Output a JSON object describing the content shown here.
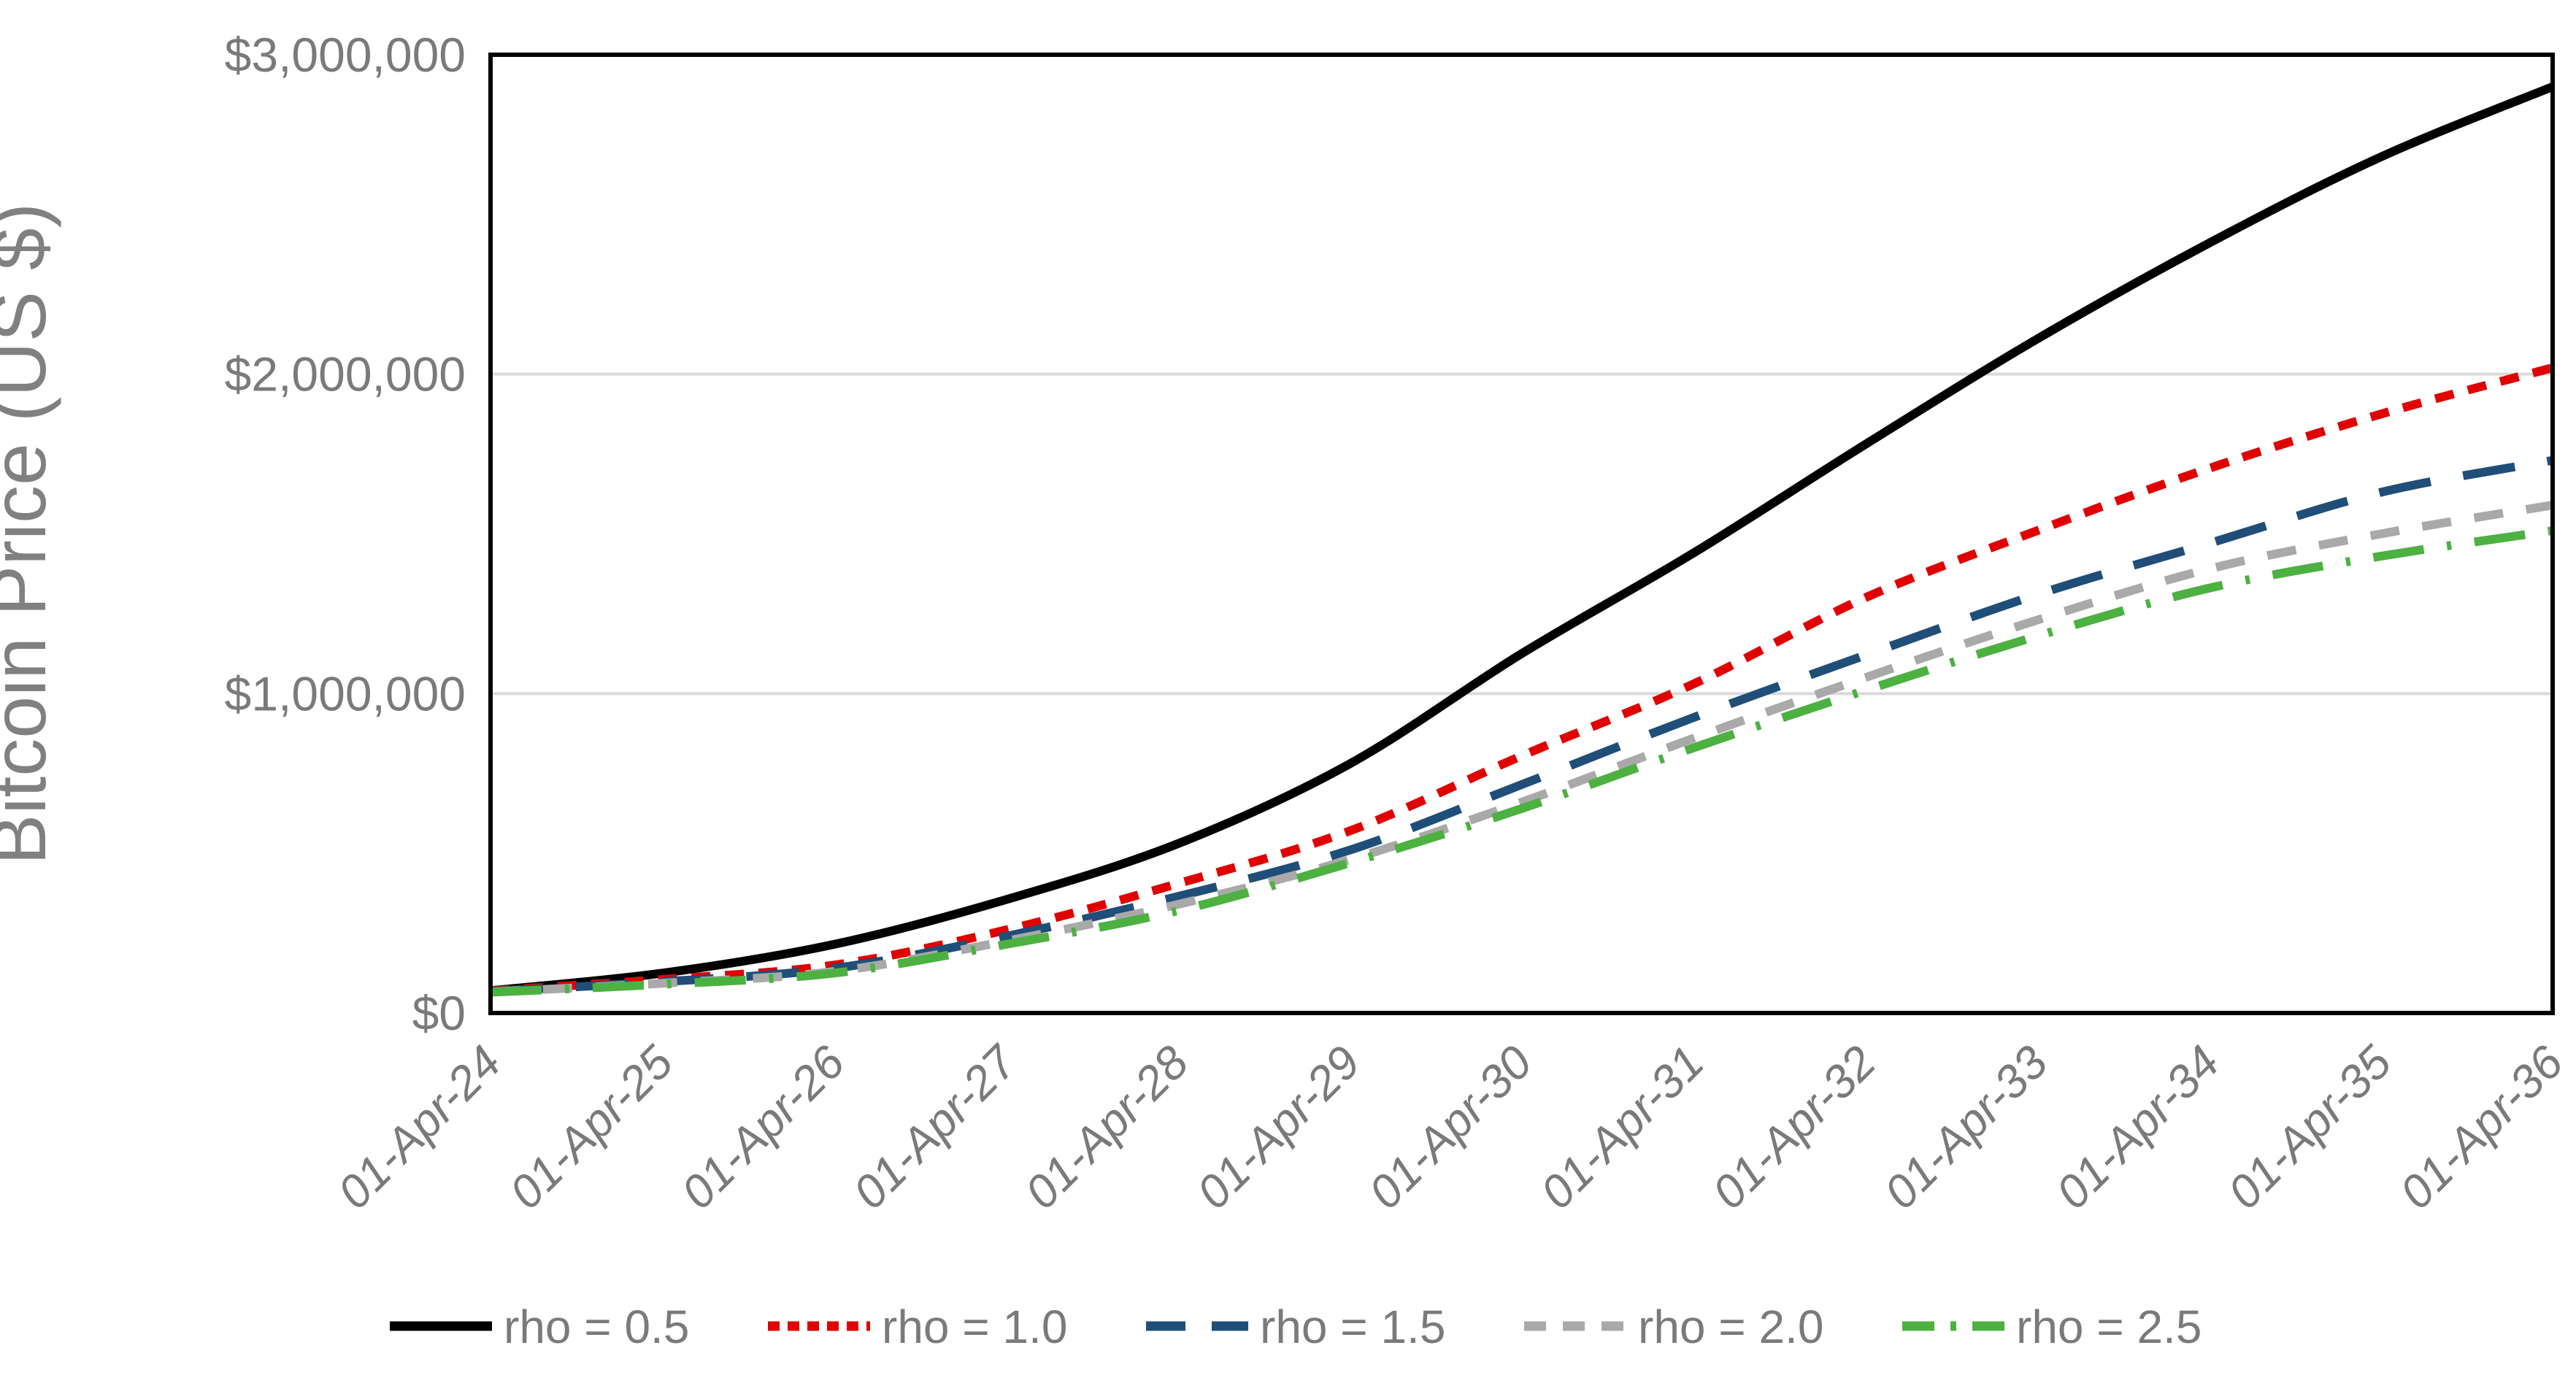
{
  "chart_data": {
    "type": "line",
    "title": "",
    "xlabel": "",
    "ylabel": "Bitcoin Price (US $)",
    "categories": [
      "01-Apr-24",
      "01-Apr-25",
      "01-Apr-26",
      "01-Apr-27",
      "01-Apr-28",
      "01-Apr-29",
      "01-Apr-30",
      "01-Apr-31",
      "01-Apr-32",
      "01-Apr-33",
      "01-Apr-34",
      "01-Apr-35",
      "01-Apr-36"
    ],
    "series": [
      {
        "name": "rho = 0.5",
        "color": "#000000",
        "dash": "solid",
        "values": [
          70000,
          125000,
          215000,
          355000,
          530000,
          780000,
          1125000,
          1440000,
          1780000,
          2110000,
          2410000,
          2680000,
          2900000
        ]
      },
      {
        "name": "rho = 1.0",
        "color": "#e00000",
        "dash": "dot",
        "values": [
          70000,
          105000,
          150000,
          260000,
          405000,
          570000,
          805000,
          1030000,
          1300000,
          1510000,
          1705000,
          1875000,
          2020000
        ]
      },
      {
        "name": "rho = 1.5",
        "color": "#1f4e79",
        "dash": "long-dash",
        "values": [
          68000,
          98000,
          140000,
          240000,
          365000,
          510000,
          715000,
          925000,
          1120000,
          1310000,
          1470000,
          1630000,
          1730000
        ]
      },
      {
        "name": "rho = 2.0",
        "color": "#a9a9a9",
        "dash": "dash",
        "values": [
          66000,
          93000,
          130000,
          225000,
          340000,
          480000,
          660000,
          860000,
          1050000,
          1230000,
          1390000,
          1500000,
          1590000
        ]
      },
      {
        "name": "rho = 2.5",
        "color": "#4cb140",
        "dash": "dash-dot",
        "values": [
          65000,
          90000,
          125000,
          215000,
          320000,
          470000,
          640000,
          830000,
          1010000,
          1180000,
          1330000,
          1430000,
          1510000
        ]
      }
    ],
    "y_ticks": [
      {
        "value": 0,
        "label": "$0"
      },
      {
        "value": 1000000,
        "label": "$1,000,000"
      },
      {
        "value": 2000000,
        "label": "$2,000,000"
      },
      {
        "value": 3000000,
        "label": "$3,000,000"
      }
    ],
    "ylim": [
      0,
      3000000
    ],
    "grid": "horizontal",
    "legend_position": "bottom",
    "colors": {
      "axis_text": "#7a7a7a",
      "axis_title_text": "#808080",
      "legend_text": "#7a7a7a",
      "gridline": "#d9d9d9",
      "plot_border": "#000000",
      "background": "#ffffff"
    }
  }
}
